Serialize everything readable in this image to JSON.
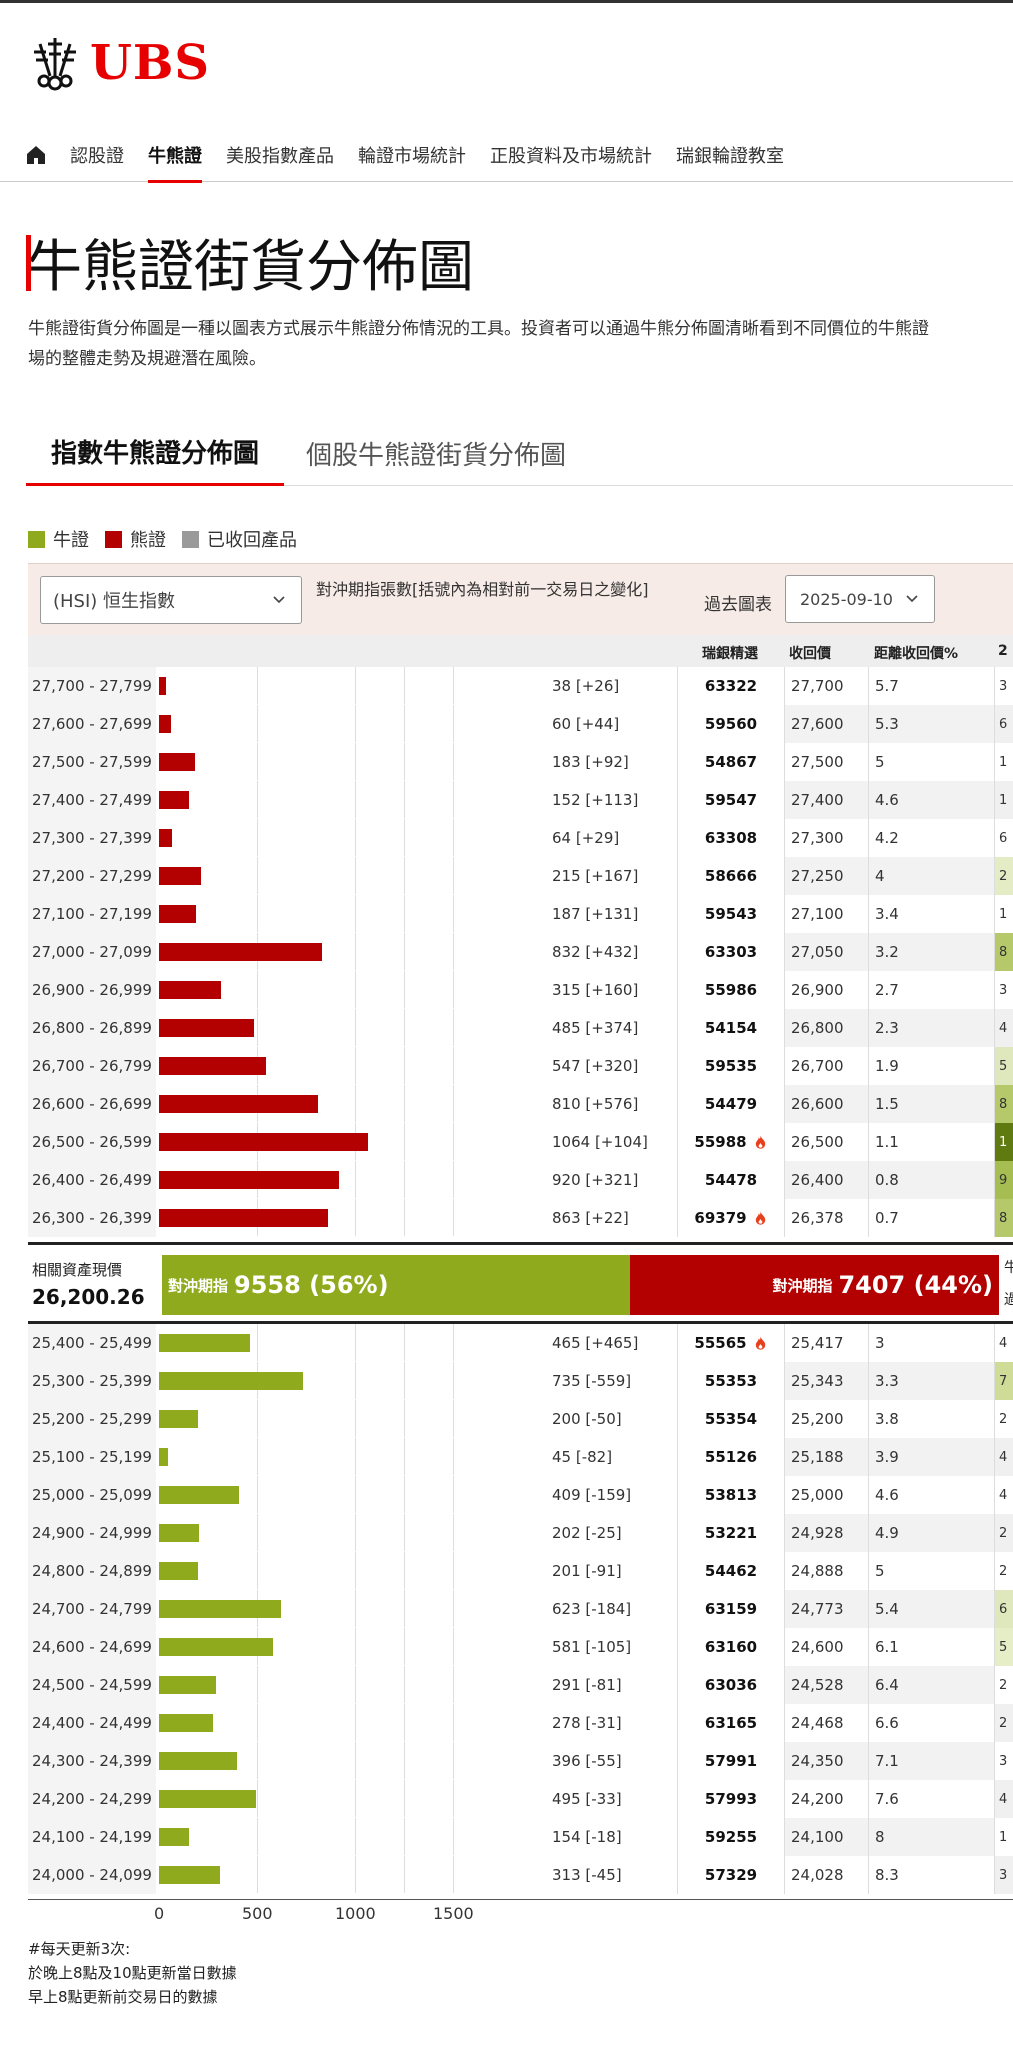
{
  "brand": {
    "name": "UBS"
  },
  "nav": {
    "items": [
      "認股證",
      "牛熊證",
      "美股指數產品",
      "輪證市場統計",
      "正股資料及市場統計",
      "瑞銀輪證教室"
    ],
    "active_index": 1
  },
  "page": {
    "title": "牛熊證街貨分佈圖",
    "description_line1": "牛熊證街貨分佈圖是一種以圖表方式展示牛熊證分佈情況的工具。投資者可以通過牛熊分佈圖清晰看到不同價位的牛熊證",
    "description_line2": "場的整體走勢及規避潛在風險。"
  },
  "tabs": [
    "指數牛熊證分佈圖",
    "個股牛熊證街貨分佈圖"
  ],
  "legend": [
    {
      "label": "牛證",
      "color": "#8faa1c"
    },
    {
      "label": "熊證",
      "color": "#b30000"
    },
    {
      "label": "已收回產品",
      "color": "#9a9a9a"
    }
  ],
  "controls": {
    "index_select": "(HSI) 恒生指數",
    "note": "對沖期指張數[括號內為相對前一交易日之變化]",
    "history_label": "過去圖表",
    "date_select": "2025-09-10"
  },
  "table_header": {
    "pick": "瑞銀精選",
    "call": "收回價",
    "distance": "距離收回價%",
    "cut": "2"
  },
  "axis_ticks": [
    "0",
    "500",
    "1000",
    "1500"
  ],
  "bear_rows": [
    {
      "range": "27,700 - 27,799",
      "count": "38 [+26]",
      "value": 38,
      "code": "63322",
      "hot": false,
      "call": "27,700",
      "dist": "5.7",
      "heat": "3",
      "heat_color": "#ffffff"
    },
    {
      "range": "27,600 - 27,699",
      "count": "60 [+44]",
      "value": 60,
      "code": "59560",
      "hot": false,
      "call": "27,600",
      "dist": "5.3",
      "heat": "6",
      "heat_color": "#f0f0f0"
    },
    {
      "range": "27,500 - 27,599",
      "count": "183 [+92]",
      "value": 183,
      "code": "54867",
      "hot": false,
      "call": "27,500",
      "dist": "5",
      "heat": "1",
      "heat_color": "#ffffff"
    },
    {
      "range": "27,400 - 27,499",
      "count": "152 [+113]",
      "value": 152,
      "code": "59547",
      "hot": false,
      "call": "27,400",
      "dist": "4.6",
      "heat": "1",
      "heat_color": "#f0f0f0"
    },
    {
      "range": "27,300 - 27,399",
      "count": "64 [+29]",
      "value": 64,
      "code": "63308",
      "hot": false,
      "call": "27,300",
      "dist": "4.2",
      "heat": "6",
      "heat_color": "#ffffff"
    },
    {
      "range": "27,200 - 27,299",
      "count": "215 [+167]",
      "value": 215,
      "code": "58666",
      "hot": false,
      "call": "27,250",
      "dist": "4",
      "heat": "2",
      "heat_color": "#e3ecc4"
    },
    {
      "range": "27,100 - 27,199",
      "count": "187 [+131]",
      "value": 187,
      "code": "59543",
      "hot": false,
      "call": "27,100",
      "dist": "3.4",
      "heat": "1",
      "heat_color": "#ffffff"
    },
    {
      "range": "27,000 - 27,099",
      "count": "832 [+432]",
      "value": 832,
      "code": "63303",
      "hot": false,
      "call": "27,050",
      "dist": "3.2",
      "heat": "8",
      "heat_color": "#b5c96b"
    },
    {
      "range": "26,900 - 26,999",
      "count": "315 [+160]",
      "value": 315,
      "code": "55986",
      "hot": false,
      "call": "26,900",
      "dist": "2.7",
      "heat": "3",
      "heat_color": "#ffffff"
    },
    {
      "range": "26,800 - 26,899",
      "count": "485 [+374]",
      "value": 485,
      "code": "54154",
      "hot": false,
      "call": "26,800",
      "dist": "2.3",
      "heat": "4",
      "heat_color": "#f0f0f0"
    },
    {
      "range": "26,700 - 26,799",
      "count": "547 [+320]",
      "value": 547,
      "code": "59535",
      "hot": false,
      "call": "26,700",
      "dist": "1.9",
      "heat": "5",
      "heat_color": "#dfe8bd"
    },
    {
      "range": "26,600 - 26,699",
      "count": "810 [+576]",
      "value": 810,
      "code": "54479",
      "hot": false,
      "call": "26,600",
      "dist": "1.5",
      "heat": "8",
      "heat_color": "#b5c96b"
    },
    {
      "range": "26,500 - 26,599",
      "count": "1064 [+104]",
      "value": 1064,
      "code": "55988",
      "hot": true,
      "call": "26,500",
      "dist": "1.1",
      "heat": "1",
      "heat_color": "#5f7a10"
    },
    {
      "range": "26,400 - 26,499",
      "count": "920 [+321]",
      "value": 920,
      "code": "54478",
      "hot": false,
      "call": "26,400",
      "dist": "0.8",
      "heat": "9",
      "heat_color": "#a6bd52"
    },
    {
      "range": "26,300 - 26,399",
      "count": "863 [+22]",
      "value": 863,
      "code": "69379",
      "hot": true,
      "call": "26,378",
      "dist": "0.7",
      "heat": "8",
      "heat_color": "#b5c96b"
    }
  ],
  "middle": {
    "asset_label": "相關資產現價",
    "asset_value": "26,200.26",
    "bull_label": "對沖期指",
    "bull_value": "9558 (56%)",
    "bear_label": "對沖期指",
    "bear_value": "7407 (44%)",
    "cut1": "牛",
    "cut2": "過"
  },
  "bull_rows": [
    {
      "range": "25,400 - 25,499",
      "count": "465 [+465]",
      "value": 465,
      "code": "55565",
      "hot": true,
      "call": "25,417",
      "dist": "3",
      "heat": "4",
      "heat_color": "#ffffff"
    },
    {
      "range": "25,300 - 25,399",
      "count": "735 [-559]",
      "value": 735,
      "code": "55353",
      "hot": false,
      "call": "25,343",
      "dist": "3.3",
      "heat": "7",
      "heat_color": "#cfdc98"
    },
    {
      "range": "25,200 - 25,299",
      "count": "200 [-50]",
      "value": 200,
      "code": "55354",
      "hot": false,
      "call": "25,200",
      "dist": "3.8",
      "heat": "2",
      "heat_color": "#ffffff"
    },
    {
      "range": "25,100 - 25,199",
      "count": "45 [-82]",
      "value": 45,
      "code": "55126",
      "hot": false,
      "call": "25,188",
      "dist": "3.9",
      "heat": "4",
      "heat_color": "#f0f0f0"
    },
    {
      "range": "25,000 - 25,099",
      "count": "409 [-159]",
      "value": 409,
      "code": "53813",
      "hot": false,
      "call": "25,000",
      "dist": "4.6",
      "heat": "4",
      "heat_color": "#ffffff"
    },
    {
      "range": "24,900 - 24,999",
      "count": "202 [-25]",
      "value": 202,
      "code": "53221",
      "hot": false,
      "call": "24,928",
      "dist": "4.9",
      "heat": "2",
      "heat_color": "#f0f0f0"
    },
    {
      "range": "24,800 - 24,899",
      "count": "201 [-91]",
      "value": 201,
      "code": "54462",
      "hot": false,
      "call": "24,888",
      "dist": "5",
      "heat": "2",
      "heat_color": "#ffffff"
    },
    {
      "range": "24,700 - 24,799",
      "count": "623 [-184]",
      "value": 623,
      "code": "63159",
      "hot": false,
      "call": "24,773",
      "dist": "5.4",
      "heat": "6",
      "heat_color": "#dfe8bd"
    },
    {
      "range": "24,600 - 24,699",
      "count": "581 [-105]",
      "value": 581,
      "code": "63160",
      "hot": false,
      "call": "24,600",
      "dist": "6.1",
      "heat": "5",
      "heat_color": "#e6eec8"
    },
    {
      "range": "24,500 - 24,599",
      "count": "291 [-81]",
      "value": 291,
      "code": "63036",
      "hot": false,
      "call": "24,528",
      "dist": "6.4",
      "heat": "2",
      "heat_color": "#ffffff"
    },
    {
      "range": "24,400 - 24,499",
      "count": "278 [-31]",
      "value": 278,
      "code": "63165",
      "hot": false,
      "call": "24,468",
      "dist": "6.6",
      "heat": "2",
      "heat_color": "#f0f0f0"
    },
    {
      "range": "24,300 - 24,399",
      "count": "396 [-55]",
      "value": 396,
      "code": "57991",
      "hot": false,
      "call": "24,350",
      "dist": "7.1",
      "heat": "3",
      "heat_color": "#ffffff"
    },
    {
      "range": "24,200 - 24,299",
      "count": "495 [-33]",
      "value": 495,
      "code": "57993",
      "hot": false,
      "call": "24,200",
      "dist": "7.6",
      "heat": "4",
      "heat_color": "#f0f0f0"
    },
    {
      "range": "24,100 - 24,199",
      "count": "154 [-18]",
      "value": 154,
      "code": "59255",
      "hot": false,
      "call": "24,100",
      "dist": "8",
      "heat": "1",
      "heat_color": "#ffffff"
    },
    {
      "range": "24,000 - 24,099",
      "count": "313 [-45]",
      "value": 313,
      "code": "57329",
      "hot": false,
      "call": "24,028",
      "dist": "8.3",
      "heat": "3",
      "heat_color": "#f0f0f0"
    }
  ],
  "footnote": [
    "#每天更新3次:",
    "於晚上8點及10點更新當日數據",
    "早上8點更新前交易日的數據"
  ]
}
